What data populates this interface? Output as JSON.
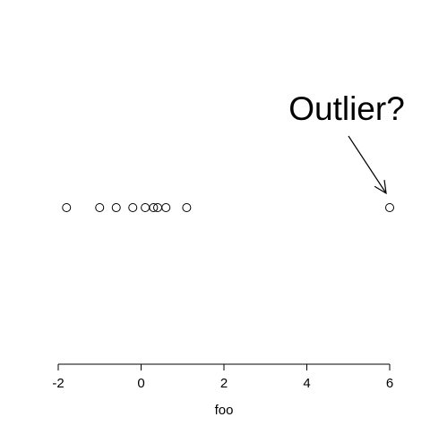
{
  "chart_data": {
    "type": "scatter",
    "x": [
      -1.8,
      -1.0,
      -0.6,
      -0.2,
      0.1,
      0.3,
      0.4,
      0.6,
      1.1,
      6.0
    ],
    "xlabel": "foo",
    "ylabel": "",
    "xlim": [
      -2,
      6
    ],
    "x_ticks": [
      "-2",
      "0",
      "2",
      "4",
      "6"
    ],
    "grid": false,
    "marker": "open-circle",
    "annotation": {
      "text": "Outlier?",
      "points_to_x": 6.0
    },
    "colors": {
      "points": "#000000",
      "axis": "#000000",
      "background": "#ffffff"
    }
  }
}
